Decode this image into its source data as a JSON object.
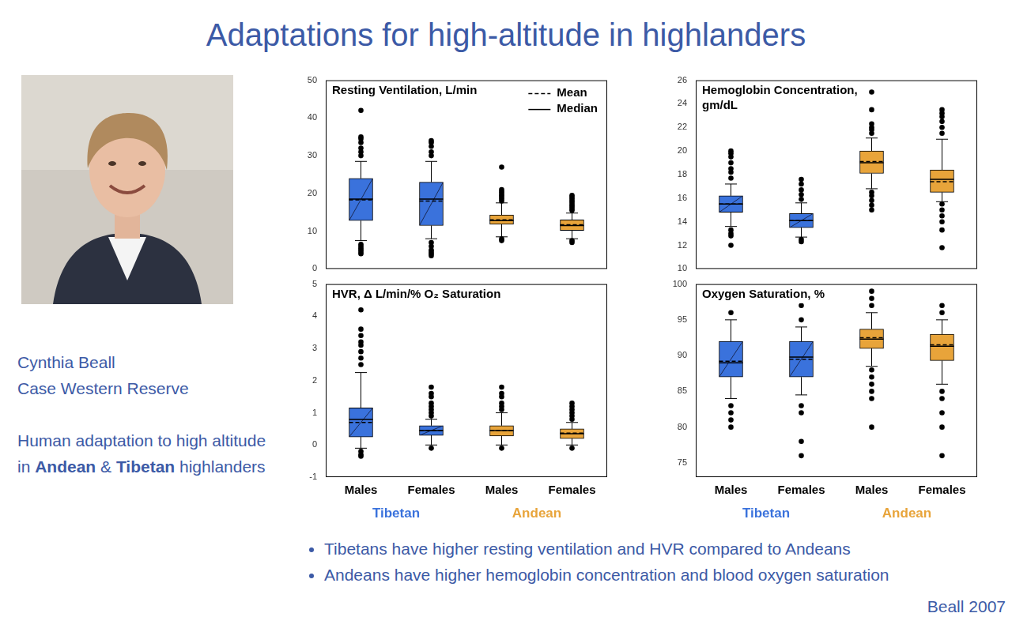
{
  "slide": {
    "title": "Adaptations for high-altitude in highlanders",
    "speaker": {
      "name": "Cynthia Beall",
      "affiliation": "Case Western Reserve"
    },
    "description": [
      {
        "text": "Human adaptation to high altitude in "
      },
      {
        "text": "Andean",
        "bold": true
      },
      {
        "text": " & "
      },
      {
        "text": "Tibetan",
        "bold": true
      },
      {
        "text": " highlanders"
      }
    ],
    "bullets": [
      "Tibetans have higher resting ventilation and HVR compared to Andeans",
      "Andeans have higher hemoglobin concentration and blood oxygen saturation"
    ],
    "citation": "Beall 2007"
  },
  "chart_data": [
    {
      "type": "box",
      "title": "Resting Ventilation, L/min",
      "categories": [
        null,
        null
      ],
      "tick_labels": "y",
      "grid": false,
      "legend": "top-right",
      "legend_entries": [
        {
          "name": "Mean",
          "line_style": "dashed"
        },
        {
          "name": "Median",
          "line_style": "solid"
        }
      ],
      "ylim": [
        0,
        50
      ],
      "yticks": [
        0,
        10,
        20,
        30,
        40,
        50
      ],
      "series": [
        {
          "color": "#3a72dc",
          "values": [
            {
              "whisker_low": 7.5,
              "q1": 12.8,
              "median": 18.5,
              "mean": 18.3,
              "q3": 24,
              "whisker_high": 28.5,
              "outliers": [
                30,
                31,
                32,
                33.5,
                34.5,
                35,
                42,
                6.5,
                6,
                5.5,
                5,
                4.5,
                4
              ]
            },
            {
              "whisker_low": 8,
              "q1": 11.5,
              "median": 18.5,
              "mean": 18,
              "q3": 23,
              "whisker_high": 28.5,
              "outliers": [
                30,
                31,
                32.5,
                33.5,
                34,
                7,
                6,
                5,
                4.5,
                4,
                3.5
              ]
            }
          ]
        },
        {
          "color": "#e8a43a",
          "values": [
            {
              "whisker_low": 8.5,
              "q1": 11.8,
              "median": 12.8,
              "mean": 13,
              "q3": 14.3,
              "whisker_high": 17.5,
              "outliers": [
                18,
                18.5,
                19,
                19.5,
                20,
                20.5,
                21,
                27,
                8,
                7.5
              ]
            },
            {
              "whisker_low": 8,
              "q1": 10.2,
              "median": 11.5,
              "mean": 11.7,
              "q3": 13,
              "whisker_high": 14.8,
              "outliers": [
                15.5,
                16,
                16.5,
                17,
                17.5,
                18,
                18.5,
                19,
                19.5,
                7.5,
                7
              ]
            }
          ]
        }
      ]
    },
    {
      "type": "box",
      "title": "Hemoglobin Concentration, gm/dL",
      "categories": [
        null,
        null
      ],
      "tick_labels": "y",
      "grid": false,
      "ylim": [
        10,
        26
      ],
      "yticks": [
        10,
        12,
        14,
        16,
        18,
        20,
        22,
        24,
        26
      ],
      "series": [
        {
          "color": "#3a72dc",
          "values": [
            {
              "whisker_low": 13.6,
              "q1": 14.8,
              "median": 15.5,
              "mean": 15.5,
              "q3": 16.2,
              "whisker_high": 17.2,
              "outliers": [
                17.7,
                18.2,
                18.5,
                19,
                19.5,
                19.8,
                20,
                13.3,
                13,
                12.8,
                12
              ]
            },
            {
              "whisker_low": 12.7,
              "q1": 13.5,
              "median": 14.1,
              "mean": 14.1,
              "q3": 14.7,
              "whisker_high": 15.6,
              "outliers": [
                15.9,
                16.3,
                16.7,
                17.2,
                17.6,
                12.5,
                12.3
              ]
            }
          ]
        },
        {
          "color": "#e8a43a",
          "values": [
            {
              "whisker_low": 16.8,
              "q1": 18.1,
              "median": 19,
              "mean": 19.1,
              "q3": 20,
              "whisker_high": 21.1,
              "outliers": [
                21.5,
                21.8,
                22,
                22.3,
                23.5,
                25,
                16.5,
                16.2,
                15.8,
                15.4,
                15
              ]
            },
            {
              "whisker_low": 15.7,
              "q1": 16.5,
              "median": 17.6,
              "mean": 17.4,
              "q3": 18.4,
              "whisker_high": 21,
              "outliers": [
                21.5,
                22,
                22.5,
                22.9,
                23.2,
                23.5,
                15.5,
                15,
                14.5,
                14,
                13.3,
                11.8
              ]
            }
          ]
        }
      ]
    },
    {
      "type": "box",
      "title": "HVR, Δ L/min/% O₂ Saturation",
      "categories": [
        "Males",
        "Females"
      ],
      "grid": false,
      "ylim": [
        -1,
        5
      ],
      "yticks": [
        -1,
        0,
        1,
        2,
        3,
        4,
        5
      ],
      "series": [
        {
          "name": "Tibetan",
          "color": "#3a72dc",
          "values": [
            {
              "whisker_low": -0.1,
              "q1": 0.25,
              "median": 0.8,
              "mean": 0.7,
              "q3": 1.15,
              "whisker_high": 2.25,
              "outliers": [
                2.5,
                2.7,
                2.9,
                3.1,
                3.2,
                3.4,
                3.6,
                4.2,
                -0.2,
                -0.3,
                -0.35
              ]
            },
            {
              "whisker_low": 0,
              "q1": 0.3,
              "median": 0.45,
              "mean": 0.45,
              "q3": 0.6,
              "whisker_high": 0.8,
              "outliers": [
                0.9,
                1,
                1.1,
                1.2,
                1.3,
                1.5,
                1.6,
                1.8,
                -0.1
              ]
            }
          ]
        },
        {
          "name": "Andean",
          "color": "#e8a43a",
          "values": [
            {
              "whisker_low": 0,
              "q1": 0.28,
              "median": 0.45,
              "mean": 0.45,
              "q3": 0.6,
              "whisker_high": 1,
              "outliers": [
                1.1,
                1.2,
                1.3,
                1.5,
                1.6,
                1.8,
                -0.1
              ]
            },
            {
              "whisker_low": 0,
              "q1": 0.2,
              "median": 0.35,
              "mean": 0.37,
              "q3": 0.5,
              "whisker_high": 0.7,
              "outliers": [
                0.8,
                0.9,
                1,
                1.1,
                1.2,
                1.3,
                -0.1
              ]
            }
          ]
        }
      ]
    },
    {
      "type": "box",
      "title": "Oxygen Saturation, %",
      "categories": [
        "Males",
        "Females"
      ],
      "grid": false,
      "ylim": [
        73,
        100
      ],
      "yticks": [
        75,
        80,
        85,
        90,
        95,
        100
      ],
      "series": [
        {
          "name": "Tibetan",
          "color": "#3a72dc",
          "values": [
            {
              "whisker_low": 84,
              "q1": 87,
              "median": 89,
              "mean": 89.2,
              "q3": 92,
              "whisker_high": 95,
              "outliers": [
                96,
                83,
                82,
                81,
                80
              ]
            },
            {
              "whisker_low": 84.5,
              "q1": 87,
              "median": 89.8,
              "mean": 89.5,
              "q3": 92,
              "whisker_high": 94,
              "outliers": [
                95,
                97,
                83,
                82,
                78,
                76
              ]
            }
          ]
        },
        {
          "name": "Andean",
          "color": "#e8a43a",
          "values": [
            {
              "whisker_low": 88.5,
              "q1": 91,
              "median": 92.3,
              "mean": 92.5,
              "q3": 93.7,
              "whisker_high": 96,
              "outliers": [
                97,
                98,
                99,
                88,
                87,
                86,
                85,
                84,
                80
              ]
            },
            {
              "whisker_low": 86,
              "q1": 89.3,
              "median": 91.3,
              "mean": 91.5,
              "q3": 93,
              "whisker_high": 95,
              "outliers": [
                96,
                97,
                85,
                84,
                82,
                80,
                76
              ]
            }
          ]
        }
      ]
    }
  ]
}
